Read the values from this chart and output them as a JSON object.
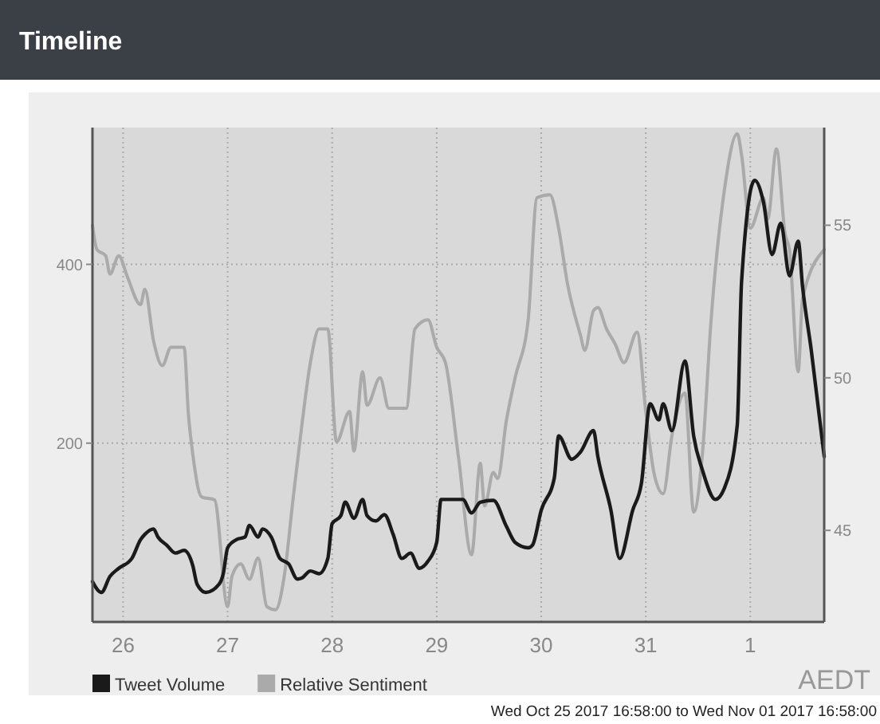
{
  "chart_data": {
    "type": "line",
    "title": "Timeline",
    "xlim": [
      "2017-10-25T16:58",
      "2017-11-01T16:58"
    ],
    "xticks": [
      {
        "value": "2017-10-26",
        "label": "26"
      },
      {
        "value": "2017-10-27",
        "label": "27"
      },
      {
        "value": "2017-10-28",
        "label": "28"
      },
      {
        "value": "2017-10-29",
        "label": "29"
      },
      {
        "value": "2017-10-30",
        "label": "30"
      },
      {
        "value": "2017-10-31",
        "label": "31"
      },
      {
        "value": "2017-11-01",
        "label": "1"
      }
    ],
    "ylim": [
      0,
      553
    ],
    "yticks": [
      200,
      400
    ],
    "y2lim": [
      42,
      58.2
    ],
    "y2ticks": [
      45,
      50,
      55
    ],
    "grid": true,
    "legend": "bottom left",
    "line_style": "solid",
    "annotations": [
      "AEDT",
      "Wed Oct 25 2017 16:58:00 to Wed Nov 01 2017 16:58:00"
    ],
    "series": [
      {
        "name": "Tweet Volume",
        "color": "#1a1a1a",
        "x": [
          "2017-10-25T16:58",
          "2017-10-25T19:00",
          "2017-10-25T21:00",
          "2017-10-25T23:00",
          "2017-10-26T02:00",
          "2017-10-26T04:00",
          "2017-10-26T05:00",
          "2017-10-26T07:00",
          "2017-10-26T08:00",
          "2017-10-26T10:00",
          "2017-10-26T12:00",
          "2017-10-26T14:00",
          "2017-10-26T16:00",
          "2017-10-26T17:00",
          "2017-10-26T19:00",
          "2017-10-26T22:00",
          "2017-10-26T23:00",
          "2017-10-27T00:00",
          "2017-10-27T02:00",
          "2017-10-27T04:00",
          "2017-10-27T05:00",
          "2017-10-27T07:00",
          "2017-10-27T08:00",
          "2017-10-27T10:00",
          "2017-10-27T12:00",
          "2017-10-27T14:00",
          "2017-10-27T16:00",
          "2017-10-27T17:00",
          "2017-10-27T19:00",
          "2017-10-27T21:00",
          "2017-10-27T23:00",
          "2017-10-28T00:00",
          "2017-10-28T02:00",
          "2017-10-28T03:00",
          "2017-10-28T05:00",
          "2017-10-28T07:00",
          "2017-10-28T08:00",
          "2017-10-28T10:00",
          "2017-10-28T12:00",
          "2017-10-28T14:00",
          "2017-10-28T16:00",
          "2017-10-28T18:00",
          "2017-10-28T20:00",
          "2017-10-28T22:00",
          "2017-10-29T00:00",
          "2017-10-29T01:00",
          "2017-10-29T05:00",
          "2017-10-29T06:00",
          "2017-10-29T08:00",
          "2017-10-29T10:00",
          "2017-10-29T13:00",
          "2017-10-29T16:00",
          "2017-10-29T18:00",
          "2017-10-29T21:00",
          "2017-10-29T22:00",
          "2017-10-30T00:00",
          "2017-10-30T03:00",
          "2017-10-30T04:00",
          "2017-10-30T07:00",
          "2017-10-30T09:00",
          "2017-10-30T12:00",
          "2017-10-30T13:00",
          "2017-10-30T16:00",
          "2017-10-30T18:00",
          "2017-10-30T21:00",
          "2017-10-30T23:00",
          "2017-10-31T01:00",
          "2017-10-31T03:00",
          "2017-10-31T04:00",
          "2017-10-31T06:00",
          "2017-10-31T09:00",
          "2017-10-31T11:00",
          "2017-10-31T13:00",
          "2017-10-31T16:00",
          "2017-10-31T18:00",
          "2017-10-31T21:00",
          "2017-10-31T22:00",
          "2017-11-01T01:00",
          "2017-11-01T03:00",
          "2017-11-01T05:00",
          "2017-11-01T07:00",
          "2017-11-01T09:00",
          "2017-11-01T11:00",
          "2017-11-01T12:00",
          "2017-11-01T14:00",
          "2017-11-01T16:58"
        ],
        "values": [
          45,
          33,
          51,
          60,
          71,
          92,
          98,
          104,
          95,
          86,
          77,
          80,
          63,
          42,
          33,
          42,
          54,
          83,
          92,
          95,
          108,
          95,
          104,
          95,
          71,
          65,
          48,
          49,
          57,
          54,
          71,
          110,
          119,
          134,
          116,
          137,
          119,
          113,
          120,
          98,
          71,
          77,
          60,
          68,
          89,
          137,
          137,
          137,
          122,
          134,
          136,
          107,
          89,
          83,
          86,
          125,
          161,
          208,
          182,
          190,
          214,
          185,
          125,
          71,
          125,
          155,
          244,
          226,
          244,
          214,
          292,
          208,
          170,
          137,
          149,
          220,
          381,
          494,
          470,
          411,
          446,
          387,
          426,
          375,
          304,
          185
        ]
      },
      {
        "name": "Relative Sentiment",
        "color": "#aaaaaa",
        "axis": "y2",
        "x": [
          "2017-10-25T16:58",
          "2017-10-25T18:00",
          "2017-10-25T20:00",
          "2017-10-25T21:00",
          "2017-10-25T23:00",
          "2017-10-26T01:00",
          "2017-10-26T04:00",
          "2017-10-26T05:00",
          "2017-10-26T07:00",
          "2017-10-26T09:00",
          "2017-10-26T11:00",
          "2017-10-26T14:00",
          "2017-10-26T15:00",
          "2017-10-26T16:00",
          "2017-10-26T18:00",
          "2017-10-26T21:00",
          "2017-10-27T00:00",
          "2017-10-27T01:00",
          "2017-10-27T03:00",
          "2017-10-27T05:00",
          "2017-10-27T07:00",
          "2017-10-27T09:00",
          "2017-10-27T11:00",
          "2017-10-27T13:00",
          "2017-10-27T15:00",
          "2017-10-27T17:00",
          "2017-10-27T19:00",
          "2017-10-27T21:00",
          "2017-10-27T23:00",
          "2017-10-28T01:00",
          "2017-10-28T04:00",
          "2017-10-28T05:00",
          "2017-10-28T07:00",
          "2017-10-28T08:00",
          "2017-10-28T11:00",
          "2017-10-28T13:00",
          "2017-10-28T17:00",
          "2017-10-28T19:00",
          "2017-10-28T22:00",
          "2017-10-29T00:00",
          "2017-10-29T02:00",
          "2017-10-29T05:00",
          "2017-10-29T08:00",
          "2017-10-29T10:00",
          "2017-10-29T11:00",
          "2017-10-29T13:00",
          "2017-10-29T14:00",
          "2017-10-29T16:00",
          "2017-10-29T18:00",
          "2017-10-29T21:00",
          "2017-10-29T23:00",
          "2017-10-30T02:00",
          "2017-10-30T04:00",
          "2017-10-30T06:00",
          "2017-10-30T09:00",
          "2017-10-30T10:00",
          "2017-10-30T12:00",
          "2017-10-30T13:00",
          "2017-10-30T15:00",
          "2017-10-30T17:00",
          "2017-10-30T19:00",
          "2017-10-30T22:00",
          "2017-10-31T00:00",
          "2017-10-31T02:00",
          "2017-10-31T04:00",
          "2017-10-31T06:00",
          "2017-10-31T09:00",
          "2017-10-31T11:00",
          "2017-10-31T13:00",
          "2017-10-31T15:00",
          "2017-10-31T18:00",
          "2017-10-31T21:00",
          "2017-10-31T22:00",
          "2017-11-01T00:00",
          "2017-11-01T03:00",
          "2017-11-01T04:00",
          "2017-11-01T06:00",
          "2017-11-01T08:00",
          "2017-11-01T09:00",
          "2017-11-01T11:00",
          "2017-11-01T12:00",
          "2017-11-01T16:58"
        ],
        "values": [
          55.0,
          54.2,
          54.0,
          53.4,
          54.0,
          53.3,
          52.4,
          52.9,
          51.2,
          50.4,
          51.0,
          51.0,
          48.8,
          47.5,
          46.1,
          46.0,
          42.5,
          43.5,
          43.9,
          43.4,
          44.1,
          42.5,
          42.4,
          43.5,
          46.0,
          48.4,
          50.5,
          51.6,
          51.6,
          47.9,
          48.9,
          47.6,
          50.2,
          49.1,
          50.0,
          49.0,
          49.0,
          51.6,
          51.9,
          51.0,
          50.5,
          47.4,
          44.2,
          47.2,
          45.8,
          46.9,
          46.7,
          48.6,
          50.0,
          51.9,
          55.9,
          56.0,
          54.9,
          53.1,
          51.4,
          50.9,
          52.2,
          52.3,
          51.6,
          51.1,
          50.5,
          51.5,
          48.9,
          46.8,
          46.2,
          48.1,
          49.5,
          45.6,
          47.5,
          51.9,
          56.1,
          58.0,
          57.3,
          54.9,
          55.9,
          55.2,
          57.5,
          54.7,
          54.2,
          50.2,
          52.6,
          54.2
        ]
      }
    ]
  }
}
